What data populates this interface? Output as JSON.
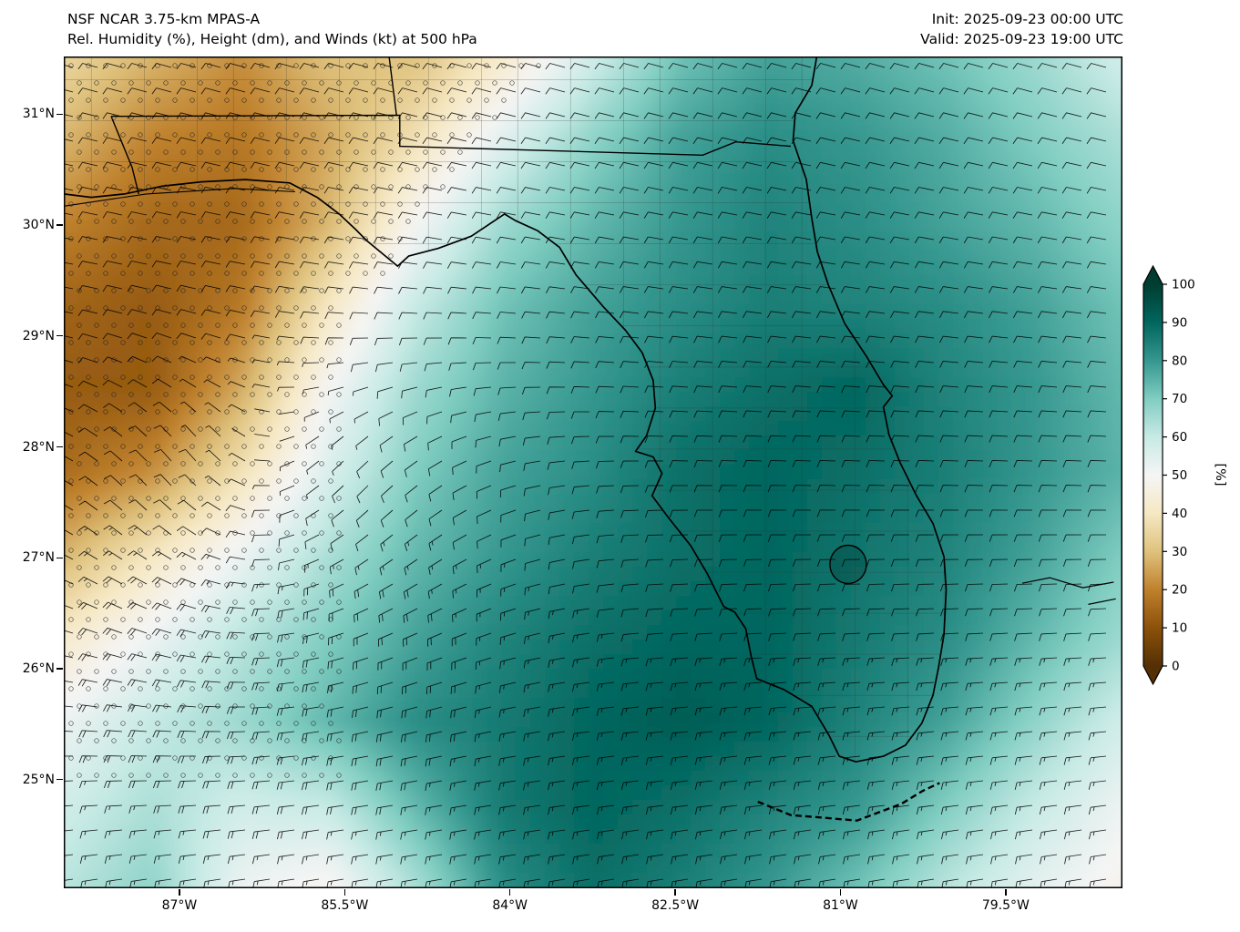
{
  "header": {
    "title_line1": "NSF NCAR 3.75-km MPAS-A",
    "title_line2": "Rel. Humidity (%), Height (dm), and Winds (kt) at 500 hPa",
    "init_label": "Init: 2025-09-23 00:00 UTC",
    "valid_label": "Valid: 2025-09-23 19:00 UTC"
  },
  "axes": {
    "lat_ticks": [
      {
        "value": 31,
        "label": "31°N"
      },
      {
        "value": 30,
        "label": "30°N"
      },
      {
        "value": 29,
        "label": "29°N"
      },
      {
        "value": 28,
        "label": "28°N"
      },
      {
        "value": 27,
        "label": "27°N"
      },
      {
        "value": 26,
        "label": "26°N"
      },
      {
        "value": 25,
        "label": "25°N"
      }
    ],
    "lon_ticks": [
      {
        "value": -87,
        "label": "87°W"
      },
      {
        "value": -85.5,
        "label": "85.5°W"
      },
      {
        "value": -84,
        "label": "84°W"
      },
      {
        "value": -82.5,
        "label": "82.5°W"
      },
      {
        "value": -81,
        "label": "81°W"
      },
      {
        "value": -79.5,
        "label": "79.5°W"
      }
    ]
  },
  "colorbar": {
    "label": "[%]",
    "ticks": [
      100,
      90,
      80,
      70,
      60,
      50,
      40,
      30,
      20,
      10,
      0
    ],
    "extend": "both"
  },
  "chart_data": {
    "type": "heatmap",
    "title": "Rel. Humidity (%), Height (dm), and Winds (kt) at 500 hPa",
    "model": "NSF NCAR 3.75-km MPAS-A",
    "init": "2025-09-23 00:00 UTC",
    "valid": "2025-09-23 19:00 UTC",
    "field": "500 hPa relative humidity",
    "units": "%",
    "lon_range": [
      -88.05,
      -78.44
    ],
    "lat_range": [
      24.02,
      31.52
    ],
    "grid_lon": [
      -88.05,
      -87.25,
      -86.45,
      -85.65,
      -84.85,
      -84.05,
      -83.25,
      -82.45,
      -81.65,
      -80.85,
      -80.05,
      -79.25,
      -78.45
    ],
    "grid_lat": [
      31.52,
      30.77,
      30.02,
      29.27,
      28.52,
      27.77,
      27.02,
      26.27,
      25.52,
      24.77,
      24.02
    ],
    "rh_grid": [
      [
        35,
        28,
        22,
        30,
        30,
        42,
        58,
        72,
        78,
        76,
        72,
        66,
        58
      ],
      [
        28,
        20,
        18,
        26,
        38,
        55,
        68,
        78,
        82,
        80,
        76,
        70,
        64
      ],
      [
        20,
        15,
        15,
        28,
        50,
        66,
        74,
        80,
        84,
        82,
        78,
        74,
        68
      ],
      [
        14,
        12,
        18,
        40,
        60,
        72,
        78,
        82,
        85,
        84,
        82,
        78,
        72
      ],
      [
        12,
        12,
        26,
        50,
        66,
        75,
        80,
        85,
        88,
        90,
        84,
        80,
        74
      ],
      [
        16,
        22,
        38,
        56,
        70,
        78,
        82,
        88,
        90,
        88,
        85,
        80,
        75
      ],
      [
        28,
        40,
        52,
        64,
        74,
        80,
        85,
        88,
        90,
        87,
        84,
        78,
        70
      ],
      [
        42,
        52,
        62,
        70,
        78,
        84,
        88,
        90,
        90,
        86,
        82,
        74,
        66
      ],
      [
        52,
        60,
        66,
        74,
        82,
        86,
        90,
        92,
        90,
        84,
        78,
        68,
        58
      ],
      [
        58,
        64,
        58,
        60,
        74,
        86,
        90,
        88,
        84,
        80,
        70,
        60,
        52
      ],
      [
        62,
        68,
        52,
        48,
        64,
        82,
        88,
        85,
        80,
        72,
        62,
        54,
        48
      ]
    ],
    "colormap_stops": [
      [
        0,
        "#543005"
      ],
      [
        10,
        "#8c510a"
      ],
      [
        20,
        "#bf812d"
      ],
      [
        30,
        "#dfc27d"
      ],
      [
        40,
        "#f6e8c3"
      ],
      [
        50,
        "#f5f5f5"
      ],
      [
        60,
        "#c7eae5"
      ],
      [
        70,
        "#80cdc1"
      ],
      [
        80,
        "#35978f"
      ],
      [
        90,
        "#01665e"
      ],
      [
        100,
        "#003c30"
      ]
    ],
    "wind": {
      "units": "kt",
      "typical_speed_kt": [
        5,
        25
      ],
      "pattern": "broad west to southwest flow over the peninsula and Atlantic; drier northwesterly flow over the northwestern Gulf with a weak cyclonic swirl near 27N 86.2W"
    },
    "stipple": "open-circle stippling over the low-RH (dry) region in the northwest and west-central Gulf",
    "overlays": [
      "Florida coastline",
      "state borders",
      "county boundaries",
      "Lake Okeechobee",
      "Florida Keys",
      "wind barbs"
    ]
  }
}
